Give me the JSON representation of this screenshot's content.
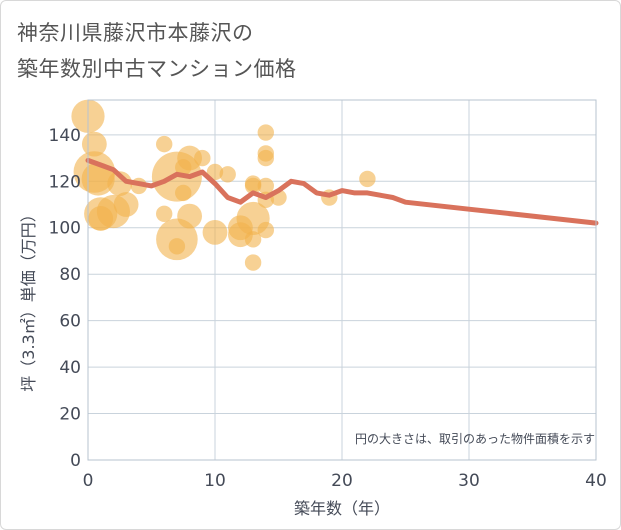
{
  "chart_data": {
    "type": "scatter",
    "title_lines": [
      "神奈川県藤沢市本藤沢の",
      "築年数別中古マンション価格"
    ],
    "xlabel": "築年数（年）",
    "ylabel": "坪（3.3㎡）単価（万円）",
    "note": "円の大きさは、取引のあった物件面積を示す",
    "xlim": [
      0,
      40
    ],
    "ylim": [
      0,
      155
    ],
    "xticks": [
      0,
      10,
      20,
      30,
      40
    ],
    "yticks": [
      0,
      20,
      40,
      60,
      80,
      100,
      120,
      140
    ],
    "grid": true,
    "colors": {
      "bubble": "#f2b24c",
      "trend_line": "#d9725c",
      "axis_text": "#444a57",
      "grid": "#c9d3dc",
      "plot_border": "#b7c3cf"
    },
    "bubbles": [
      {
        "x": 0,
        "y": 148,
        "size": 3
      },
      {
        "x": 0.5,
        "y": 136,
        "size": 2
      },
      {
        "x": 0.5,
        "y": 124,
        "size": 4
      },
      {
        "x": 0.8,
        "y": 121,
        "size": 3
      },
      {
        "x": 1,
        "y": 106,
        "size": 3
      },
      {
        "x": 1,
        "y": 104,
        "size": 2
      },
      {
        "x": 2,
        "y": 107,
        "size": 3
      },
      {
        "x": 2.5,
        "y": 119,
        "size": 2
      },
      {
        "x": 3,
        "y": 110,
        "size": 2
      },
      {
        "x": 4,
        "y": 118,
        "size": 1
      },
      {
        "x": 6,
        "y": 136,
        "size": 1
      },
      {
        "x": 6,
        "y": 106,
        "size": 1
      },
      {
        "x": 7,
        "y": 122,
        "size": 5
      },
      {
        "x": 7,
        "y": 95,
        "size": 4
      },
      {
        "x": 7,
        "y": 92,
        "size": 1
      },
      {
        "x": 7.5,
        "y": 126,
        "size": 1
      },
      {
        "x": 7.5,
        "y": 115,
        "size": 1
      },
      {
        "x": 8,
        "y": 130,
        "size": 2
      },
      {
        "x": 8,
        "y": 105,
        "size": 2
      },
      {
        "x": 9,
        "y": 130,
        "size": 1
      },
      {
        "x": 10,
        "y": 124,
        "size": 1
      },
      {
        "x": 10,
        "y": 98,
        "size": 2
      },
      {
        "x": 11,
        "y": 123,
        "size": 1
      },
      {
        "x": 12,
        "y": 100,
        "size": 2
      },
      {
        "x": 12,
        "y": 97,
        "size": 2
      },
      {
        "x": 13,
        "y": 119,
        "size": 1
      },
      {
        "x": 13,
        "y": 118,
        "size": 1
      },
      {
        "x": 13,
        "y": 104,
        "size": 3
      },
      {
        "x": 13,
        "y": 95,
        "size": 1
      },
      {
        "x": 13,
        "y": 85,
        "size": 1
      },
      {
        "x": 14,
        "y": 141,
        "size": 1
      },
      {
        "x": 14,
        "y": 132,
        "size": 1
      },
      {
        "x": 14,
        "y": 130,
        "size": 1
      },
      {
        "x": 14,
        "y": 118,
        "size": 1
      },
      {
        "x": 14,
        "y": 112,
        "size": 1
      },
      {
        "x": 14,
        "y": 99,
        "size": 1
      },
      {
        "x": 15,
        "y": 113,
        "size": 1
      },
      {
        "x": 19,
        "y": 113,
        "size": 1
      },
      {
        "x": 22,
        "y": 121,
        "size": 1
      }
    ],
    "trend": {
      "x": [
        0,
        1,
        2,
        3,
        4,
        5,
        6,
        7,
        8,
        9,
        10,
        11,
        12,
        13,
        14,
        15,
        16,
        17,
        18,
        19,
        20,
        21,
        22,
        23,
        24,
        25,
        30,
        35,
        40
      ],
      "y": [
        129,
        127,
        125,
        120,
        119,
        118,
        120,
        123,
        122,
        124,
        119,
        113,
        111,
        115,
        113,
        116,
        120,
        119,
        115,
        114,
        116,
        115,
        115,
        114,
        113,
        111,
        108,
        105,
        102
      ]
    }
  }
}
